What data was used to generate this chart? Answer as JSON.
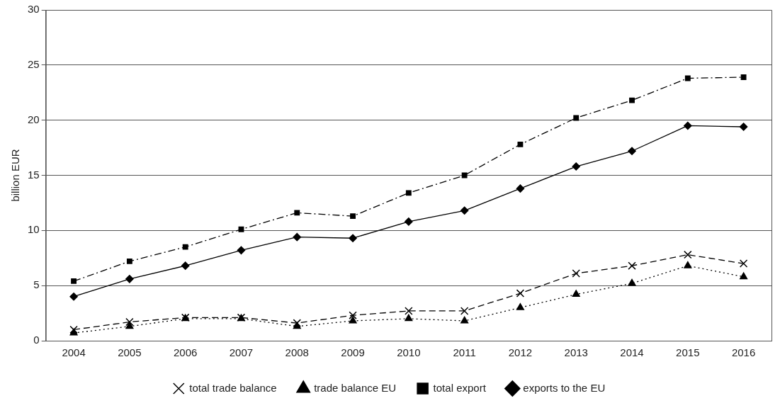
{
  "chart_data": {
    "type": "line",
    "ylabel": "billion EUR",
    "categories": [
      "2004",
      "2005",
      "2006",
      "2007",
      "2008",
      "2009",
      "2010",
      "2011",
      "2012",
      "2013",
      "2014",
      "2015",
      "2016"
    ],
    "ylim": [
      0,
      30
    ],
    "yticks": [
      0,
      5,
      10,
      15,
      20,
      25,
      30
    ],
    "grid": "y",
    "legend": "bottom",
    "series": [
      {
        "name": "exports to the EU",
        "color": "#000000",
        "marker": "diamond",
        "line_style": "solid",
        "values": [
          4.0,
          5.6,
          6.8,
          8.2,
          9.4,
          9.3,
          10.8,
          11.8,
          13.8,
          15.8,
          17.2,
          19.5,
          19.4
        ]
      },
      {
        "name": "total export",
        "color": "#000000",
        "marker": "square",
        "line_style": "dashdot",
        "values": [
          5.4,
          7.2,
          8.5,
          10.1,
          11.6,
          11.3,
          13.4,
          15.0,
          17.8,
          20.2,
          21.8,
          23.8,
          23.9
        ]
      },
      {
        "name": "trade balance EU",
        "color": "#000000",
        "marker": "triangle",
        "line_style": "dotted",
        "values": [
          0.7,
          1.3,
          2.0,
          2.0,
          1.3,
          1.8,
          2.0,
          1.8,
          3.0,
          4.2,
          5.2,
          6.8,
          5.8
        ]
      },
      {
        "name": "total trade balance",
        "color": "#000000",
        "marker": "cross",
        "line_style": "dashed",
        "values": [
          1.0,
          1.7,
          2.1,
          2.1,
          1.6,
          2.3,
          2.7,
          2.7,
          4.3,
          6.1,
          6.8,
          7.8,
          7.0
        ]
      }
    ]
  }
}
